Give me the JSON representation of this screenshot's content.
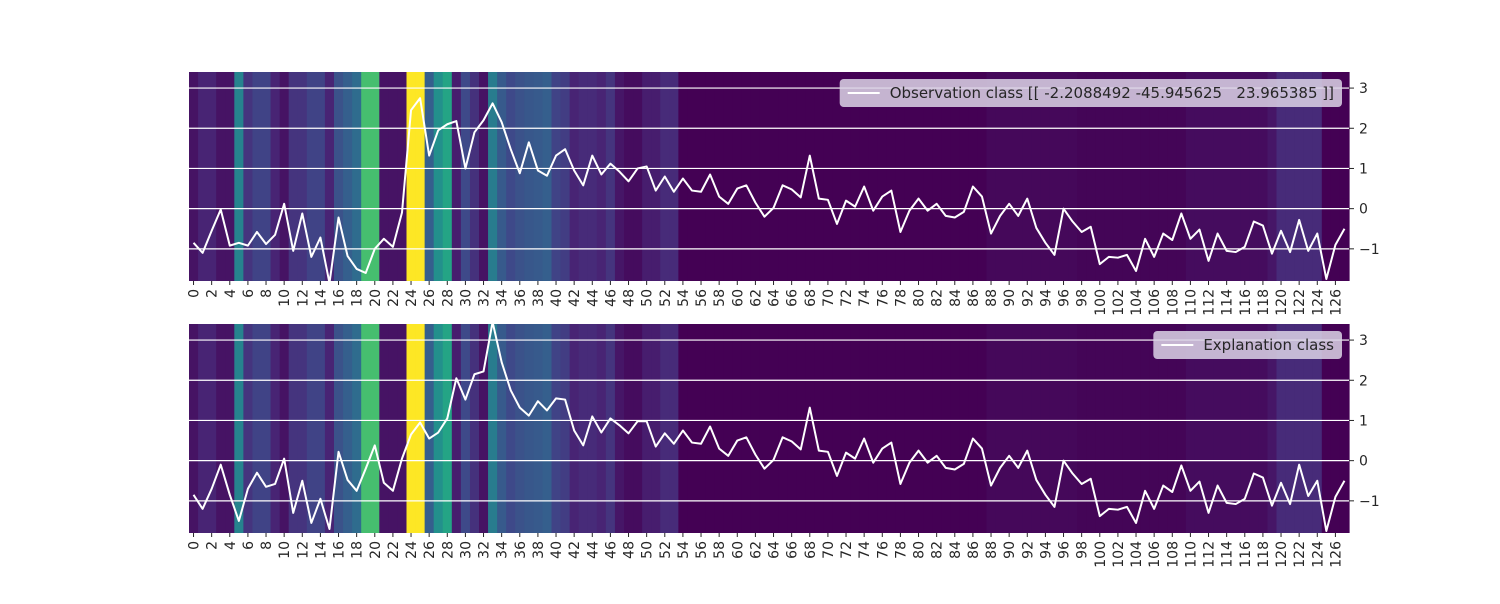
{
  "charts": [
    {
      "legend_label": "Observation class [[ -2.2088492 -45.945625   23.965385 ]]",
      "legend_location": "upper right"
    },
    {
      "legend_label": "Explanation class",
      "legend_location": "upper right"
    }
  ],
  "chart_data": [
    {
      "type": "line",
      "background": "heatmap",
      "colormap": "viridis",
      "x_range": [
        0,
        127
      ],
      "ylim": [
        -1.8,
        3.4
      ],
      "yticks": [
        -1,
        0,
        1,
        2,
        3
      ],
      "xticks": [
        0,
        2,
        4,
        6,
        8,
        10,
        12,
        14,
        16,
        18,
        20,
        22,
        24,
        26,
        28,
        30,
        32,
        34,
        36,
        38,
        40,
        42,
        44,
        46,
        48,
        50,
        52,
        54,
        56,
        58,
        60,
        62,
        64,
        66,
        68,
        70,
        72,
        74,
        76,
        78,
        80,
        82,
        84,
        86,
        88,
        90,
        92,
        94,
        96,
        98,
        100,
        102,
        104,
        106,
        108,
        110,
        112,
        114,
        116,
        118,
        120,
        122,
        124,
        126
      ],
      "grid": true,
      "series": [
        {
          "name": "Observation class [[ -2.2088492 -45.945625   23.965385 ]]",
          "color": "#ffffff",
          "values": [
            -0.85,
            -1.1,
            -0.55,
            -0.02,
            -0.92,
            -0.85,
            -0.92,
            -0.58,
            -0.88,
            -0.65,
            0.12,
            -1.05,
            -0.12,
            -1.2,
            -0.72,
            -1.85,
            -0.22,
            -1.18,
            -1.5,
            -1.6,
            -1.0,
            -0.75,
            -0.95,
            -0.1,
            2.45,
            2.75,
            1.32,
            1.95,
            2.1,
            2.18,
            1.0,
            1.9,
            2.2,
            2.62,
            2.15,
            1.48,
            0.88,
            1.65,
            0.95,
            0.82,
            1.32,
            1.48,
            0.95,
            0.58,
            1.32,
            0.85,
            1.12,
            0.92,
            0.68,
            1.0,
            1.05,
            0.45,
            0.8,
            0.42,
            0.75,
            0.45,
            0.42,
            0.85,
            0.3,
            0.12,
            0.5,
            0.58,
            0.15,
            -0.2,
            0.02,
            0.58,
            0.48,
            0.28,
            1.32,
            0.25,
            0.22,
            -0.38,
            0.2,
            0.05,
            0.55,
            -0.05,
            0.3,
            0.45,
            -0.58,
            -0.05,
            0.25,
            -0.05,
            0.12,
            -0.18,
            -0.22,
            -0.08,
            0.55,
            0.3,
            -0.62,
            -0.18,
            0.12,
            -0.18,
            0.25,
            -0.48,
            -0.85,
            -1.15,
            0.0,
            -0.32,
            -0.58,
            -0.45,
            -1.38,
            -1.2,
            -1.22,
            -1.15,
            -1.55,
            -0.75,
            -1.2,
            -0.62,
            -0.78,
            -0.12,
            -0.75,
            -0.52,
            -1.3,
            -0.62,
            -1.05,
            -1.08,
            -0.95,
            -0.32,
            -0.42,
            -1.12,
            -0.55,
            -1.08,
            -0.28,
            -1.05,
            -0.62,
            -1.75,
            -0.9,
            -0.5
          ]
        }
      ],
      "heatmap_values": [
        0.05,
        0.1,
        0.1,
        0.05,
        0.05,
        0.45,
        0.15,
        0.2,
        0.2,
        0.1,
        0.05,
        0.15,
        0.15,
        0.2,
        0.2,
        0.1,
        0.25,
        0.3,
        0.35,
        0.7,
        0.7,
        0.05,
        0.05,
        0.05,
        1.0,
        1.0,
        0.3,
        0.5,
        0.58,
        0.08,
        0.22,
        0.14,
        0.05,
        0.42,
        0.28,
        0.22,
        0.25,
        0.27,
        0.28,
        0.3,
        0.2,
        0.18,
        0.1,
        0.12,
        0.12,
        0.1,
        0.15,
        0.06,
        0.03,
        0.03,
        0.08,
        0.08,
        0.12,
        0.12,
        0.0,
        0.0,
        0.0,
        0.0,
        0.0,
        0.0,
        0.0,
        0.0,
        0.0,
        0.0,
        0.0,
        0.0,
        0.0,
        0.0,
        0.0,
        0.0,
        0.0,
        0.0,
        0.0,
        0.0,
        0.0,
        0.0,
        0.0,
        0.0,
        0.0,
        0.0,
        0.0,
        0.0,
        0.0,
        0.0,
        0.0,
        0.0,
        0.0,
        0.0,
        0.02,
        0.02,
        0.02,
        0.02,
        0.02,
        0.02,
        0.02,
        0.02,
        0.02,
        0.02,
        0.01,
        0.01,
        0.01,
        0.01,
        0.01,
        0.01,
        0.01,
        0.01,
        0.01,
        0.01,
        0.01,
        0.01,
        0.03,
        0.03,
        0.03,
        0.03,
        0.03,
        0.03,
        0.03,
        0.03,
        0.03,
        0.06,
        0.12,
        0.12,
        0.12,
        0.12,
        0.12,
        0.0,
        0.0,
        0.0
      ]
    },
    {
      "type": "line",
      "background": "heatmap",
      "colormap": "viridis",
      "x_range": [
        0,
        127
      ],
      "ylim": [
        -1.8,
        3.4
      ],
      "yticks": [
        -1,
        0,
        1,
        2,
        3
      ],
      "xticks": [
        0,
        2,
        4,
        6,
        8,
        10,
        12,
        14,
        16,
        18,
        20,
        22,
        24,
        26,
        28,
        30,
        32,
        34,
        36,
        38,
        40,
        42,
        44,
        46,
        48,
        50,
        52,
        54,
        56,
        58,
        60,
        62,
        64,
        66,
        68,
        70,
        72,
        74,
        76,
        78,
        80,
        82,
        84,
        86,
        88,
        90,
        92,
        94,
        96,
        98,
        100,
        102,
        104,
        106,
        108,
        110,
        112,
        114,
        116,
        118,
        120,
        122,
        124,
        126
      ],
      "grid": true,
      "series": [
        {
          "name": "Explanation class",
          "color": "#ffffff",
          "values": [
            -0.85,
            -1.2,
            -0.7,
            -0.1,
            -0.85,
            -1.5,
            -0.7,
            -0.3,
            -0.65,
            -0.58,
            0.05,
            -1.3,
            -0.5,
            -1.55,
            -0.95,
            -1.7,
            0.22,
            -0.48,
            -0.75,
            -0.2,
            0.38,
            -0.55,
            -0.75,
            0.05,
            0.65,
            0.95,
            0.55,
            0.7,
            1.05,
            2.05,
            1.52,
            2.15,
            2.22,
            3.45,
            2.45,
            1.75,
            1.32,
            1.12,
            1.48,
            1.25,
            1.55,
            1.52,
            0.75,
            0.38,
            1.1,
            0.7,
            1.05,
            0.88,
            0.68,
            0.98,
            0.98,
            0.35,
            0.68,
            0.42,
            0.75,
            0.45,
            0.42,
            0.85,
            0.3,
            0.12,
            0.5,
            0.58,
            0.15,
            -0.2,
            0.02,
            0.58,
            0.48,
            0.28,
            1.32,
            0.25,
            0.22,
            -0.38,
            0.2,
            0.05,
            0.55,
            -0.05,
            0.3,
            0.45,
            -0.58,
            -0.05,
            0.25,
            -0.05,
            0.12,
            -0.18,
            -0.22,
            -0.08,
            0.55,
            0.3,
            -0.62,
            -0.18,
            0.12,
            -0.18,
            0.25,
            -0.48,
            -0.85,
            -1.15,
            0.0,
            -0.32,
            -0.58,
            -0.45,
            -1.38,
            -1.2,
            -1.22,
            -1.15,
            -1.55,
            -0.75,
            -1.2,
            -0.62,
            -0.78,
            -0.12,
            -0.75,
            -0.52,
            -1.3,
            -0.62,
            -1.05,
            -1.08,
            -0.95,
            -0.32,
            -0.42,
            -1.12,
            -0.55,
            -1.08,
            -0.1,
            -0.88,
            -0.5,
            -1.75,
            -0.9,
            -0.5
          ]
        }
      ],
      "heatmap_values": [
        0.05,
        0.1,
        0.1,
        0.05,
        0.05,
        0.45,
        0.15,
        0.2,
        0.2,
        0.1,
        0.05,
        0.15,
        0.15,
        0.2,
        0.2,
        0.1,
        0.25,
        0.3,
        0.35,
        0.7,
        0.7,
        0.05,
        0.05,
        0.05,
        1.0,
        1.0,
        0.3,
        0.5,
        0.58,
        0.08,
        0.22,
        0.14,
        0.05,
        0.42,
        0.28,
        0.22,
        0.25,
        0.27,
        0.28,
        0.3,
        0.2,
        0.18,
        0.1,
        0.12,
        0.12,
        0.1,
        0.15,
        0.06,
        0.03,
        0.03,
        0.08,
        0.08,
        0.12,
        0.12,
        0.0,
        0.0,
        0.0,
        0.0,
        0.0,
        0.0,
        0.0,
        0.0,
        0.0,
        0.0,
        0.0,
        0.0,
        0.0,
        0.0,
        0.0,
        0.0,
        0.0,
        0.0,
        0.0,
        0.0,
        0.0,
        0.0,
        0.0,
        0.0,
        0.0,
        0.0,
        0.0,
        0.0,
        0.0,
        0.0,
        0.0,
        0.0,
        0.0,
        0.0,
        0.02,
        0.02,
        0.02,
        0.02,
        0.02,
        0.02,
        0.02,
        0.02,
        0.02,
        0.02,
        0.01,
        0.01,
        0.01,
        0.01,
        0.01,
        0.01,
        0.01,
        0.01,
        0.01,
        0.01,
        0.01,
        0.01,
        0.03,
        0.03,
        0.03,
        0.03,
        0.03,
        0.03,
        0.03,
        0.03,
        0.03,
        0.06,
        0.12,
        0.12,
        0.12,
        0.12,
        0.12,
        0.0,
        0.0,
        0.0
      ]
    }
  ]
}
